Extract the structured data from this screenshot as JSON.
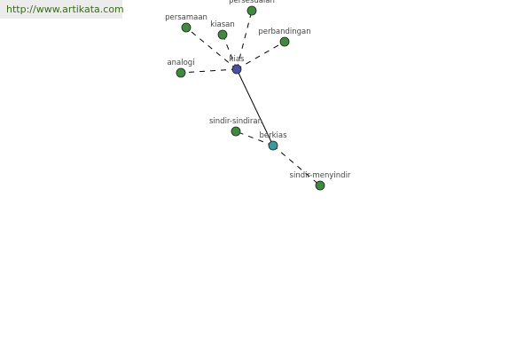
{
  "banner": {
    "url": "http://www.artikata.com"
  },
  "colors": {
    "center": "#4a4fa0",
    "secondary": "#3a9a9a",
    "leaf": "#3f8a3f",
    "edge": "#000000"
  },
  "graph": {
    "nodes": [
      {
        "id": "kias",
        "label": "kias",
        "type": "center"
      },
      {
        "id": "persesuaian",
        "label": "persesuaian",
        "type": "leaf"
      },
      {
        "id": "persamaan",
        "label": "persamaan",
        "type": "leaf"
      },
      {
        "id": "kiasan",
        "label": "kiasan",
        "type": "leaf"
      },
      {
        "id": "perbandingan",
        "label": "perbandingan",
        "type": "leaf"
      },
      {
        "id": "analogi",
        "label": "analogi",
        "type": "leaf"
      },
      {
        "id": "berkias",
        "label": "berkias",
        "type": "secondary"
      },
      {
        "id": "sindir-sindiran",
        "label": "sindir-sindiran",
        "type": "leaf"
      },
      {
        "id": "sindir-menyindir",
        "label": "sindir-menyindir",
        "type": "leaf"
      }
    ],
    "edges": [
      {
        "from": "kias",
        "to": "persesuaian",
        "style": "dashed"
      },
      {
        "from": "kias",
        "to": "persamaan",
        "style": "dashed"
      },
      {
        "from": "kias",
        "to": "kiasan",
        "style": "dashed"
      },
      {
        "from": "kias",
        "to": "perbandingan",
        "style": "dashed"
      },
      {
        "from": "kias",
        "to": "analogi",
        "style": "dashed"
      },
      {
        "from": "kias",
        "to": "berkias",
        "style": "solid"
      },
      {
        "from": "berkias",
        "to": "sindir-sindiran",
        "style": "dashed"
      },
      {
        "from": "berkias",
        "to": "sindir-menyindir",
        "style": "dashed"
      }
    ]
  }
}
